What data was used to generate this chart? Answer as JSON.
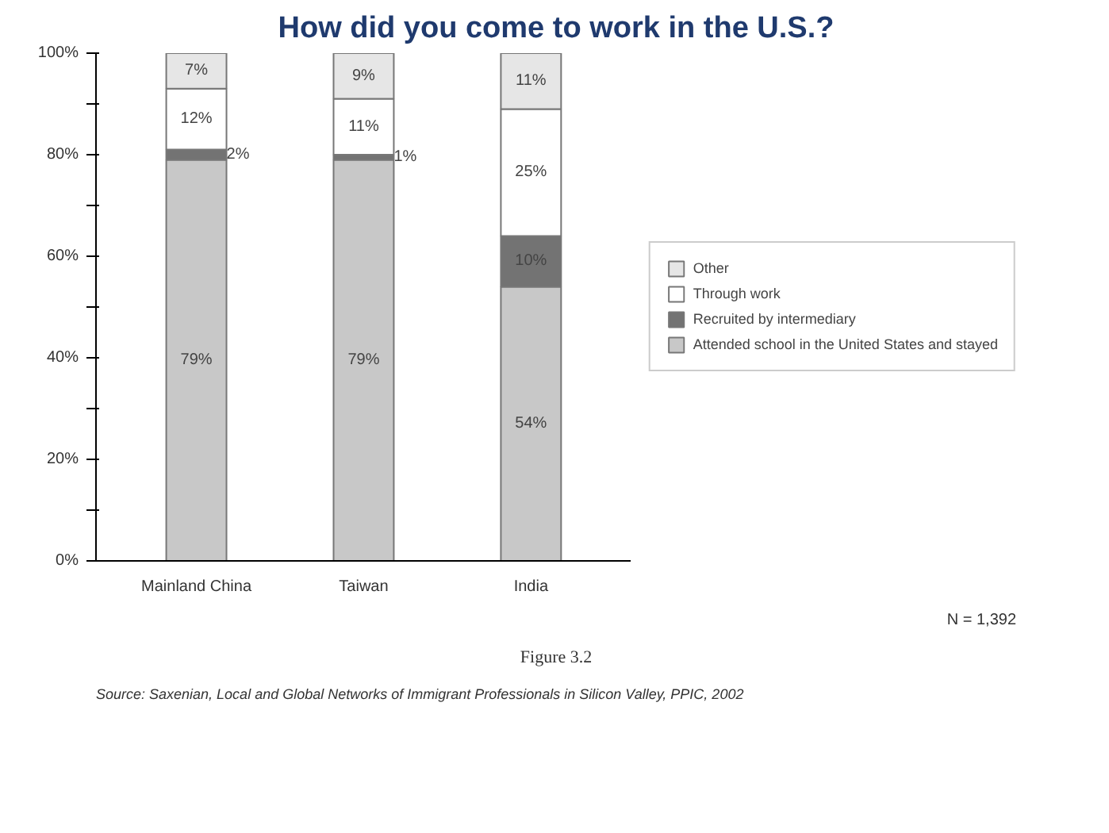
{
  "chart_data": {
    "type": "bar",
    "title": "How did you come to work in the U.S.?",
    "categories": [
      "Mainland China",
      "Taiwan",
      "India"
    ],
    "stacked": true,
    "series": [
      {
        "name": "Attended school in the United States and stayed",
        "color": "#c8c8c8",
        "values": [
          79,
          79,
          54
        ],
        "value_labels": [
          "79%",
          "79%",
          "54%"
        ]
      },
      {
        "name": "Recruited by intermediary",
        "color": "#737373",
        "values": [
          2,
          1,
          10
        ],
        "value_labels": [
          "2%",
          "1%",
          "10%"
        ]
      },
      {
        "name": "Through work",
        "color": "#ffffff",
        "values": [
          12,
          11,
          25
        ],
        "value_labels": [
          "12%",
          "11%",
          "25%"
        ]
      },
      {
        "name": "Other",
        "color": "#e6e6e6",
        "values": [
          7,
          9,
          11
        ],
        "value_labels": [
          "7%",
          "9%",
          "11%"
        ]
      }
    ],
    "ylim": [
      0,
      100
    ],
    "yticks": [
      {
        "value": 0,
        "label": "0%"
      },
      {
        "value": 10,
        "label": null
      },
      {
        "value": 20,
        "label": "20%"
      },
      {
        "value": 30,
        "label": null
      },
      {
        "value": 40,
        "label": "40%"
      },
      {
        "value": 50,
        "label": null
      },
      {
        "value": 60,
        "label": "60%"
      },
      {
        "value": 70,
        "label": null
      },
      {
        "value": 80,
        "label": "80%"
      },
      {
        "value": 90,
        "label": null
      },
      {
        "value": 100,
        "label": "100%"
      }
    ],
    "grid": false,
    "legend": "right",
    "annotations": [
      "N = 1,392",
      "Figure 3.2",
      "Source: Saxenian, Local and Global Networks of Immigrant Professionals in Silicon Valley, PPIC, 2002"
    ]
  }
}
